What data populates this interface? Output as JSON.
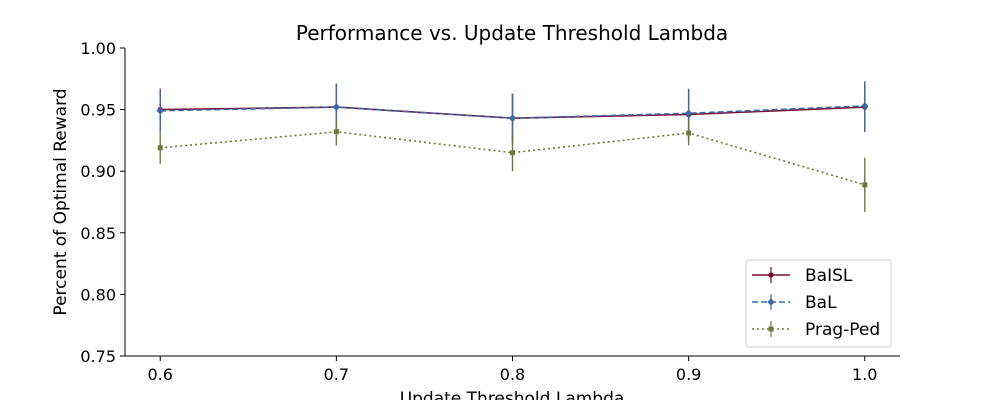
{
  "chart_data": {
    "type": "line",
    "title": "Performance vs. Update Threshold Lambda",
    "xlabel": "Update Threshold Lambda",
    "ylabel": "Percent of Optimal Reward",
    "x": [
      0.6,
      0.7,
      0.8,
      0.9,
      1.0
    ],
    "x_ticks": [
      "0.6",
      "0.7",
      "0.8",
      "0.9",
      "1.0"
    ],
    "y_ticks": [
      "0.75",
      "0.80",
      "0.85",
      "0.90",
      "0.95",
      "1.00"
    ],
    "xlim": [
      0.58,
      1.02
    ],
    "ylim": [
      0.75,
      1.0
    ],
    "grid": false,
    "legend_position": "bottom-right",
    "series": [
      {
        "name": "BaISL",
        "color": "#7b1030",
        "line_style": "solid",
        "marker": "circle",
        "values": [
          0.95,
          0.952,
          0.943,
          0.946,
          0.952
        ],
        "errors": [
          0.017,
          0.019,
          0.02,
          0.02,
          0.02
        ]
      },
      {
        "name": "BaL",
        "color": "#3b6aa8",
        "line_style": "dashed",
        "marker": "diamond",
        "values": [
          0.949,
          0.952,
          0.943,
          0.947,
          0.953
        ],
        "errors": [
          0.017,
          0.019,
          0.02,
          0.02,
          0.02
        ]
      },
      {
        "name": "Prag-Ped",
        "color": "#6b7a3c",
        "line_style": "dotted",
        "marker": "square",
        "values": [
          0.919,
          0.932,
          0.915,
          0.931,
          0.889
        ],
        "errors": [
          0.013,
          0.011,
          0.015,
          0.01,
          0.022
        ]
      }
    ]
  }
}
